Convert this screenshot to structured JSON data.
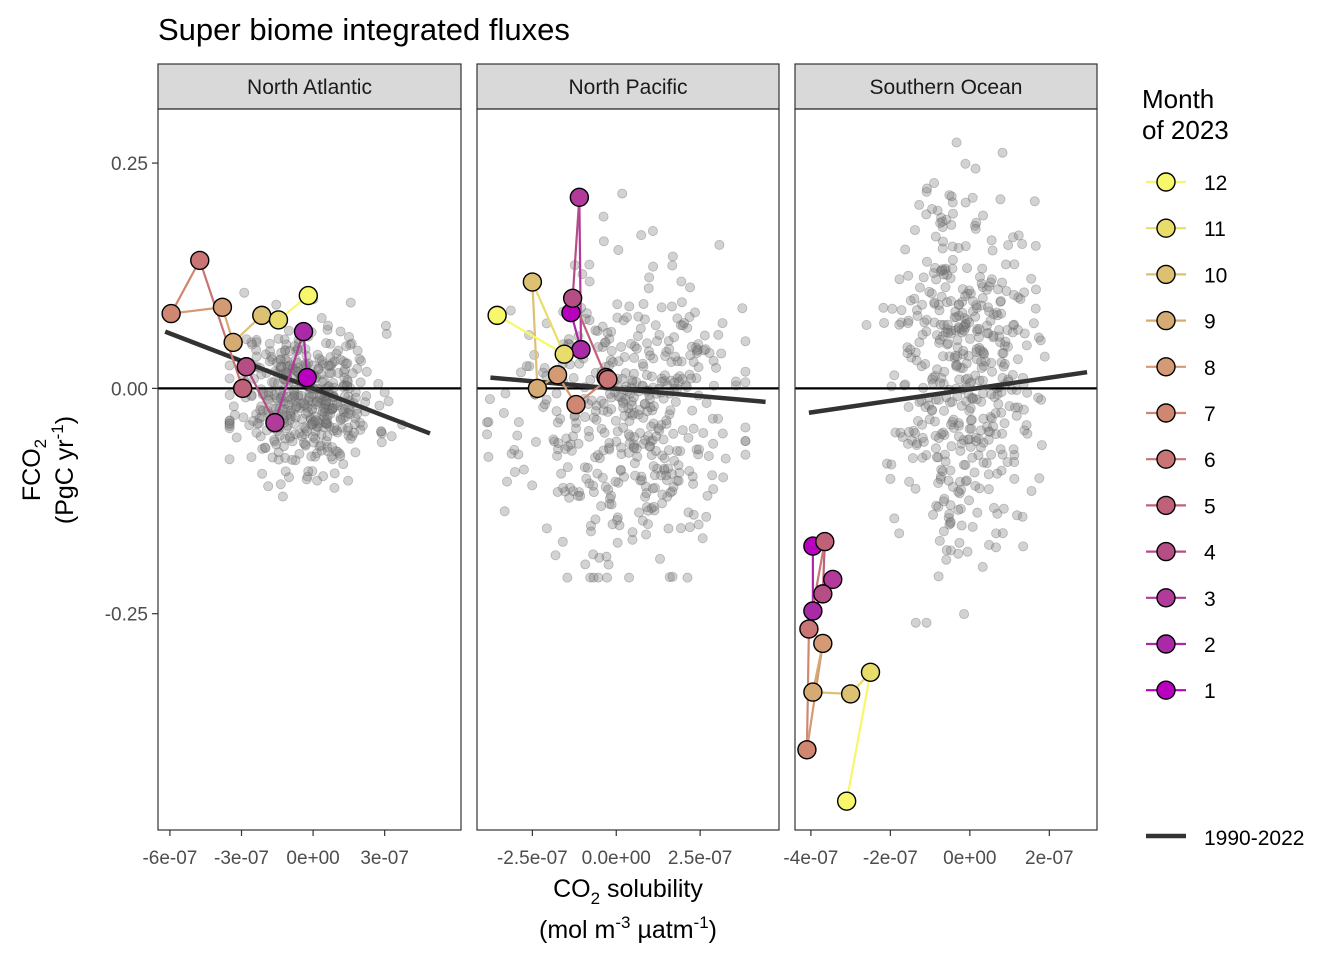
{
  "title": "Super biome integrated fluxes",
  "y_axis": {
    "label_line1": "FCO",
    "label_line1_sub": "2",
    "label_line2": "(PgC yr",
    "label_line2_sup": "-1",
    "label_line2_end": ")"
  },
  "x_axis": {
    "label_line1": "CO",
    "label_line1_sub": "2",
    "label_line1_end": " solubility",
    "label_line2_a": "(mol m",
    "label_line2_sup1": "-3",
    "label_line2_b": " µatm",
    "label_line2_sup2": "-1",
    "label_line2_c": ")"
  },
  "legend": {
    "title_line1": "Month",
    "title_line2": "of 2023",
    "months": [
      "12",
      "11",
      "10",
      "9",
      "8",
      "7",
      "6",
      "5",
      "4",
      "3",
      "2",
      "1"
    ],
    "month_colors": [
      "#f7f76b",
      "#e8dc6a",
      "#dcc173",
      "#d6ab73",
      "#d49a73",
      "#d08772",
      "#c97576",
      "#c0617a",
      "#b64e86",
      "#b23a9a",
      "#a82aa6",
      "#b800bf"
    ],
    "trend_label": "1990-2022",
    "trend_color": "#333333"
  },
  "colors": {
    "strip_fill": "#d9d9d9",
    "background_points": "#7f7f7f",
    "zero_line": "#000000"
  },
  "chart_data": [
    {
      "type": "scatter",
      "panel": "North Atlantic",
      "xlim": [
        -6.5e-07,
        6.2e-07
      ],
      "ylim": [
        -0.49,
        0.31
      ],
      "x_ticks": [
        -6e-07,
        -3e-07,
        0,
        3e-07
      ],
      "x_tick_labels": [
        "-6e-07",
        "-3e-07",
        "0e+00",
        "3e-07"
      ],
      "y_ticks": [
        0.25,
        0,
        -0.25
      ],
      "y_tick_labels": [
        "0.25",
        "0.00",
        "-0.25"
      ],
      "background_cloud": {
        "x_mean": -3e-08,
        "x_sd": 1.45e-07,
        "y_mean": -0.01,
        "y_sd": 0.04,
        "x_min": -3.5e-07,
        "x_max": 4.8e-07,
        "y_min": -0.12,
        "y_max": 0.16,
        "n": 460,
        "seed": 11
      },
      "trend_1990_2022": {
        "x": [
          -6.2e-07,
          4.9e-07
        ],
        "y": [
          0.063,
          -0.05
        ]
      },
      "months_2023": [
        {
          "month": 1,
          "x": -2.5e-08,
          "y": 0.012
        },
        {
          "month": 2,
          "x": -4e-08,
          "y": 0.063
        },
        {
          "month": 3,
          "x": -1.6e-07,
          "y": -0.038
        },
        {
          "month": 4,
          "x": -2.8e-07,
          "y": 0.024
        },
        {
          "month": 5,
          "x": -2.95e-07,
          "y": 0.0
        },
        {
          "month": 6,
          "x": -4.75e-07,
          "y": 0.142
        },
        {
          "month": 7,
          "x": -5.95e-07,
          "y": 0.083
        },
        {
          "month": 8,
          "x": -3.8e-07,
          "y": 0.09
        },
        {
          "month": 9,
          "x": -3.35e-07,
          "y": 0.051
        },
        {
          "month": 10,
          "x": -2.15e-07,
          "y": 0.081
        },
        {
          "month": 11,
          "x": -1.45e-07,
          "y": 0.076
        },
        {
          "month": 12,
          "x": -2e-08,
          "y": 0.103
        }
      ]
    },
    {
      "type": "scatter",
      "panel": "North Pacific",
      "xlim": [
        -4.15e-07,
        4.85e-07
      ],
      "ylim": [
        -0.49,
        0.31
      ],
      "x_ticks": [
        -2.5e-07,
        0,
        2.5e-07
      ],
      "x_tick_labels": [
        "-2.5e-07",
        "0.0e+00",
        "2.5e-07"
      ],
      "y_ticks": [
        0.25,
        0,
        -0.25
      ],
      "y_tick_labels": [
        "0.25",
        "0.00",
        "-0.25"
      ],
      "background_cloud": {
        "x_mean": 2.5e-08,
        "x_sd": 1.6e-07,
        "y_mean": -0.03,
        "y_sd": 0.08,
        "x_min": -3.85e-07,
        "x_max": 3.85e-07,
        "y_min": -0.21,
        "y_max": 0.27,
        "n": 470,
        "seed": 23
      },
      "trend_1990_2022": {
        "x": [
          -3.75e-07,
          4.45e-07
        ],
        "y": [
          0.012,
          -0.015
        ]
      },
      "months_2023": [
        {
          "month": 1,
          "x": -1.35e-07,
          "y": 0.084
        },
        {
          "month": 2,
          "x": -1.05e-07,
          "y": 0.043
        },
        {
          "month": 3,
          "x": -1.1e-07,
          "y": 0.212
        },
        {
          "month": 4,
          "x": -1.3e-07,
          "y": 0.1
        },
        {
          "month": 5,
          "x": -3e-08,
          "y": 0.012
        },
        {
          "month": 6,
          "x": -2.5e-08,
          "y": 0.01
        },
        {
          "month": 7,
          "x": -1.2e-07,
          "y": -0.018
        },
        {
          "month": 8,
          "x": -1.75e-07,
          "y": 0.015
        },
        {
          "month": 9,
          "x": -2.35e-07,
          "y": 0.0
        },
        {
          "month": 10,
          "x": -2.5e-07,
          "y": 0.118
        },
        {
          "month": 11,
          "x": -1.55e-07,
          "y": 0.038
        },
        {
          "month": 12,
          "x": -3.55e-07,
          "y": 0.081
        }
      ]
    },
    {
      "type": "scatter",
      "panel": "Southern Ocean",
      "xlim": [
        -4.4e-07,
        3.2e-07
      ],
      "ylim": [
        -0.49,
        0.31
      ],
      "x_ticks": [
        -4e-07,
        -2e-07,
        0,
        2e-07
      ],
      "x_tick_labels": [
        "-4e-07",
        "-2e-07",
        "0e+00",
        "2e-07"
      ],
      "y_ticks": [
        0.25,
        0,
        -0.25
      ],
      "y_tick_labels": [
        "0.25",
        "0.00",
        "-0.25"
      ],
      "background_cloud": {
        "x_mean": -1.5e-08,
        "x_sd": 8.5e-08,
        "y_mean": 0.03,
        "y_sd": 0.1,
        "x_min": -2.6e-07,
        "x_max": 2.9e-07,
        "y_min": -0.26,
        "y_max": 0.28,
        "n": 470,
        "seed": 37
      },
      "trend_1990_2022": {
        "x": [
          -4.05e-07,
          2.95e-07
        ],
        "y": [
          -0.027,
          0.018
        ]
      },
      "months_2023": [
        {
          "month": 1,
          "x": -3.95e-07,
          "y": -0.175
        },
        {
          "month": 2,
          "x": -3.95e-07,
          "y": -0.247
        },
        {
          "month": 3,
          "x": -3.45e-07,
          "y": -0.212
        },
        {
          "month": 4,
          "x": -3.7e-07,
          "y": -0.228
        },
        {
          "month": 5,
          "x": -3.65e-07,
          "y": -0.17
        },
        {
          "month": 6,
          "x": -4.05e-07,
          "y": -0.267
        },
        {
          "month": 7,
          "x": -4.1e-07,
          "y": -0.401
        },
        {
          "month": 8,
          "x": -3.7e-07,
          "y": -0.283
        },
        {
          "month": 9,
          "x": -3.95e-07,
          "y": -0.337
        },
        {
          "month": 10,
          "x": -3e-07,
          "y": -0.339
        },
        {
          "month": 11,
          "x": -2.5e-07,
          "y": -0.315
        },
        {
          "month": 12,
          "x": -3.1e-07,
          "y": -0.458
        }
      ]
    }
  ]
}
